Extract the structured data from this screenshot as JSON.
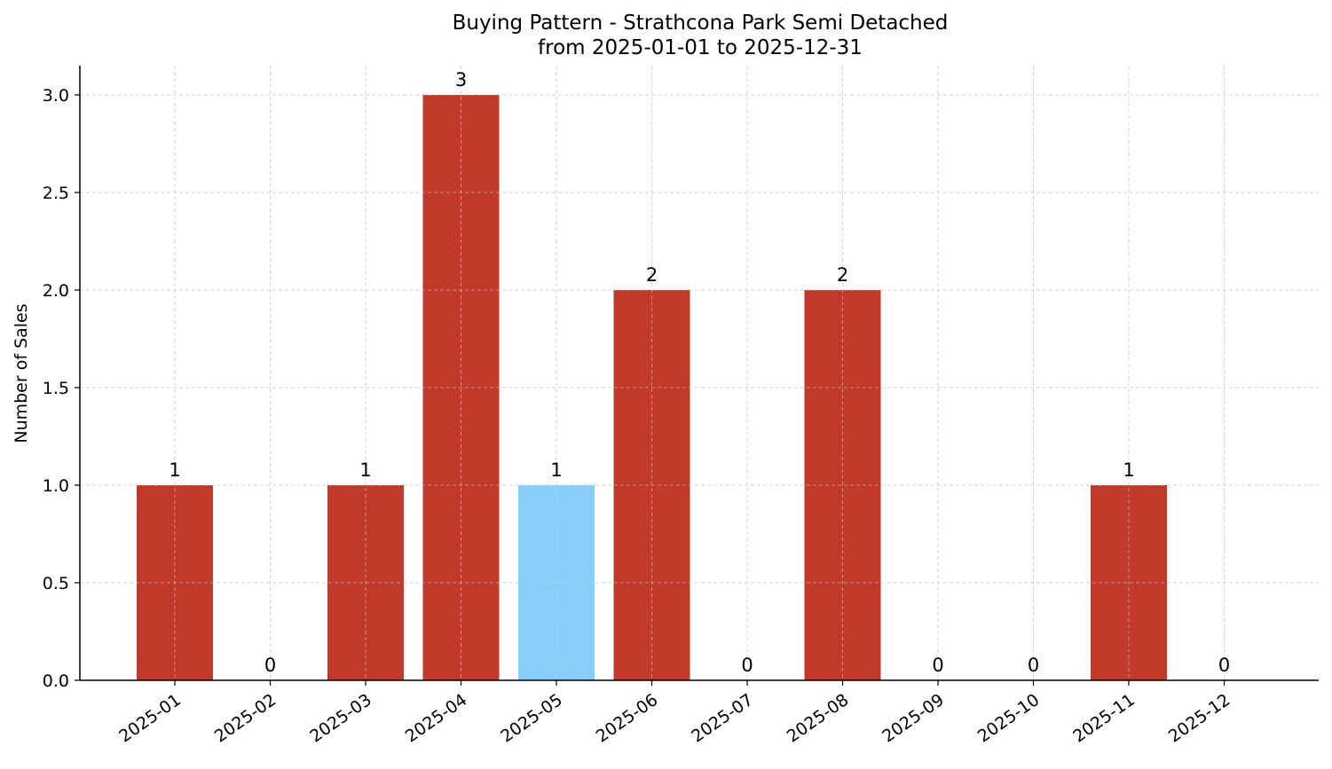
{
  "chart_data": {
    "type": "bar",
    "title": "Buying Pattern - Strathcona Park Semi Detached",
    "subtitle": "from 2025-01-01 to 2025-12-31",
    "xlabel": "",
    "ylabel": "Number of Sales",
    "categories": [
      "2025-01",
      "2025-02",
      "2025-03",
      "2025-04",
      "2025-05",
      "2025-06",
      "2025-07",
      "2025-08",
      "2025-09",
      "2025-10",
      "2025-11",
      "2025-12"
    ],
    "values": [
      1,
      0,
      1,
      3,
      1,
      2,
      0,
      2,
      0,
      0,
      1,
      0
    ],
    "bar_colors": [
      "#c0392b",
      "#c0392b",
      "#c0392b",
      "#c0392b",
      "#87cefa",
      "#c0392b",
      "#c0392b",
      "#c0392b",
      "#c0392b",
      "#c0392b",
      "#c0392b",
      "#c0392b"
    ],
    "ylim": [
      0,
      3.15
    ],
    "yticks": [
      "0.0",
      "0.5",
      "1.0",
      "1.5",
      "2.0",
      "2.5",
      "3.0"
    ],
    "grid": true,
    "legend": "none"
  }
}
